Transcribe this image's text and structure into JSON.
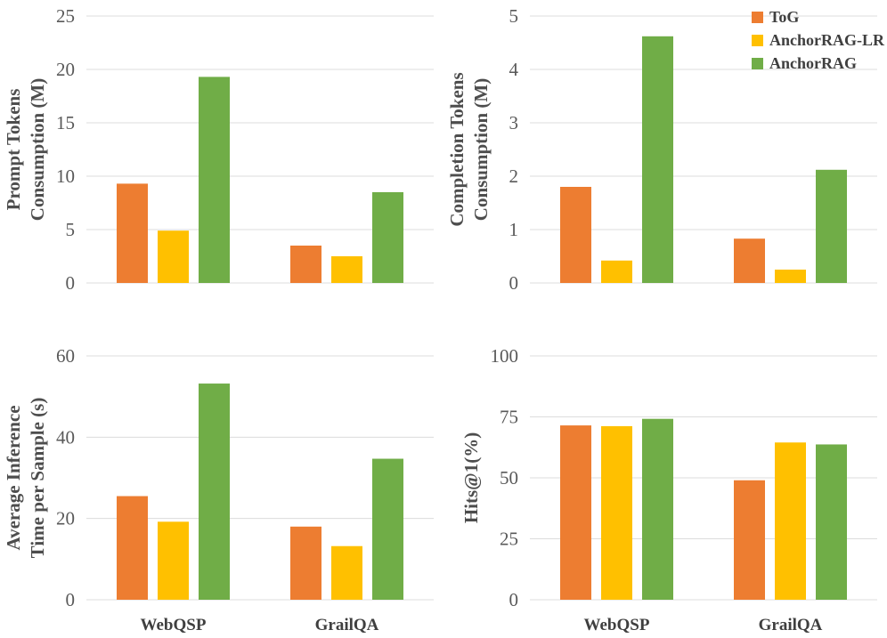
{
  "figure": {
    "description": "2x2 grid of grouped bar charts comparing ToG, AnchorRAG-LR and AnchorRAG on WebQSP and GrailQA"
  },
  "colors": {
    "tog": "#ED7D31",
    "anchorrag_lr": "#FFC000",
    "anchorrag": "#70AD47",
    "tick_text": "#595959",
    "title_text": "#4d4d4d",
    "gridline": "#dcdcdc",
    "background": "#ffffff"
  },
  "legend": {
    "chart_index": 1,
    "position": "top-right",
    "entries": [
      {
        "label": "ToG",
        "color": "#ED7D31"
      },
      {
        "label": "AnchorRAG-LR",
        "color": "#FFC000"
      },
      {
        "label": "AnchorRAG",
        "color": "#70AD47"
      }
    ]
  },
  "chart_data": [
    {
      "type": "bar",
      "title": "",
      "ylabel": "Prompt Tokens Consumption (M)",
      "ylabel_lines": [
        "Prompt Tokens",
        "Consumption (M)"
      ],
      "categories": [
        "WebQSP",
        "GrailQA"
      ],
      "series": [
        {
          "name": "ToG",
          "values": [
            9.3,
            3.5
          ]
        },
        {
          "name": "AnchorRAG-LR",
          "values": [
            4.9,
            2.5
          ]
        },
        {
          "name": "AnchorRAG",
          "values": [
            19.3,
            8.5
          ]
        }
      ],
      "ylim": [
        0,
        25
      ],
      "yticks": [
        0,
        5,
        10,
        15,
        20,
        25
      ],
      "grid": true,
      "show_xlabels": false,
      "legend_position": "none"
    },
    {
      "type": "bar",
      "title": "",
      "ylabel": "Completion Tokens Consumption (M)",
      "ylabel_lines": [
        "Completion Tokens",
        "Consumption (M)"
      ],
      "categories": [
        "WebQSP",
        "GrailQA"
      ],
      "series": [
        {
          "name": "ToG",
          "values": [
            1.8,
            0.83
          ]
        },
        {
          "name": "AnchorRAG-LR",
          "values": [
            0.42,
            0.25
          ]
        },
        {
          "name": "AnchorRAG",
          "values": [
            4.62,
            2.12
          ]
        }
      ],
      "ylim": [
        0,
        5
      ],
      "yticks": [
        0,
        1,
        2,
        3,
        4,
        5
      ],
      "grid": true,
      "show_xlabels": false,
      "legend_position": "top-right"
    },
    {
      "type": "bar",
      "title": "",
      "ylabel": "Average Inference Time per Sample (s)",
      "ylabel_lines": [
        "Average Inference",
        "Time per Sample (s)"
      ],
      "categories": [
        "WebQSP",
        "GrailQA"
      ],
      "series": [
        {
          "name": "ToG",
          "values": [
            25.5,
            18.0
          ]
        },
        {
          "name": "AnchorRAG-LR",
          "values": [
            19.2,
            13.2
          ]
        },
        {
          "name": "AnchorRAG",
          "values": [
            53.2,
            34.7
          ]
        }
      ],
      "ylim": [
        0,
        60
      ],
      "yticks": [
        0,
        20,
        40,
        60
      ],
      "grid": true,
      "show_xlabels": true,
      "legend_position": "none"
    },
    {
      "type": "bar",
      "title": "",
      "ylabel": "Hits@1(%)",
      "ylabel_lines": [
        "Hits@1(%)"
      ],
      "categories": [
        "WebQSP",
        "GrailQA"
      ],
      "series": [
        {
          "name": "ToG",
          "values": [
            71.5,
            49.0
          ]
        },
        {
          "name": "AnchorRAG-LR",
          "values": [
            71.2,
            64.5
          ]
        },
        {
          "name": "AnchorRAG",
          "values": [
            74.2,
            63.7
          ]
        }
      ],
      "ylim": [
        0,
        100
      ],
      "yticks": [
        0,
        25,
        50,
        75,
        100
      ],
      "grid": true,
      "show_xlabels": true,
      "legend_position": "none"
    }
  ]
}
